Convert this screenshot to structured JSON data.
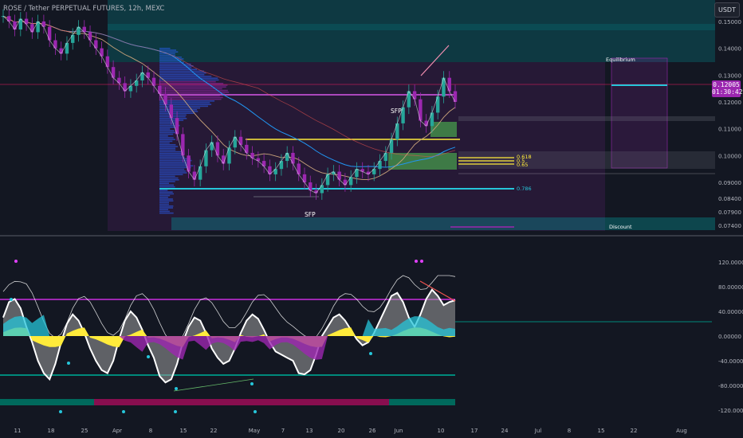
{
  "header": {
    "symbol_title": "ROSE / Tether PERPETUAL FUTURES, 12h, MEXC",
    "currency_button": "USDT"
  },
  "price_tag": {
    "price": "0.12005",
    "countdown": "01:30:42"
  },
  "colors": {
    "background": "#131722",
    "teal_zone": "#00b4b4",
    "purple_zone": "#9c27b0",
    "yellow": "#ffeb3b",
    "green_zone": "#4caf50",
    "cyan": "#26c6da",
    "price_label": "#9c27b0"
  },
  "chart_data": [
    {
      "type": "line",
      "title": "",
      "price_scale": {
        "ticks": [
          "0.15000",
          "0.14000",
          "0.13000",
          "0.12000",
          "0.11000",
          "0.10000",
          "0.09000",
          "0.08400",
          "0.07900",
          "0.07400"
        ],
        "range": [
          0.071,
          0.158
        ]
      },
      "time_axis": {
        "ticks": [
          "11",
          "18",
          "25",
          "Apr",
          "8",
          "15",
          "22",
          "May",
          "7",
          "13",
          "20",
          "26",
          "Jun",
          "10",
          "17",
          "24",
          "Jul",
          "8",
          "15",
          "22",
          "Aug"
        ]
      },
      "annotations": {
        "sfp_labels": [
          "SFP",
          "SFP"
        ],
        "fib_labels": [
          "0.618",
          "0.5",
          "0.65",
          "0.786"
        ],
        "zone_labels": [
          "Equilibrium",
          "Discount"
        ]
      },
      "series": [
        {
          "role": "close",
          "values": [
            0.152,
            0.15,
            0.147,
            0.151,
            0.149,
            0.146,
            0.15,
            0.148,
            0.143,
            0.14,
            0.138,
            0.142,
            0.145,
            0.148,
            0.146,
            0.143,
            0.14,
            0.137,
            0.133,
            0.129,
            0.127,
            0.124,
            0.126,
            0.128,
            0.131,
            0.129,
            0.126,
            0.123,
            0.119,
            0.114,
            0.108,
            0.1,
            0.094,
            0.091,
            0.096,
            0.102,
            0.105,
            0.1,
            0.097,
            0.103,
            0.107,
            0.104,
            0.101,
            0.099,
            0.098,
            0.096,
            0.093,
            0.095,
            0.098,
            0.101,
            0.097,
            0.093,
            0.09,
            0.087,
            0.086,
            0.089,
            0.093,
            0.094,
            0.091,
            0.089,
            0.092,
            0.095,
            0.094,
            0.093,
            0.095,
            0.098,
            0.101,
            0.106,
            0.112,
            0.118,
            0.124,
            0.121,
            0.113,
            0.111,
            0.116,
            0.122,
            0.129,
            0.124,
            0.12
          ]
        }
      ]
    },
    {
      "type": "area",
      "title": "",
      "value_scale": {
        "ticks": [
          "120.00000",
          "80.00000",
          "40.00000",
          "0.00000",
          "-40.00000",
          "-80.00000",
          "-120.00000"
        ],
        "range": [
          -125,
          125
        ]
      },
      "series": [
        {
          "role": "wave",
          "values": [
            30,
            55,
            60,
            45,
            15,
            -10,
            -40,
            -60,
            -70,
            -45,
            -10,
            20,
            35,
            25,
            5,
            -20,
            -40,
            -55,
            -60,
            -40,
            -5,
            25,
            40,
            30,
            10,
            -15,
            -35,
            -65,
            -75,
            -70,
            -45,
            -10,
            15,
            30,
            25,
            5,
            -20,
            -35,
            -45,
            -40,
            -20,
            5,
            25,
            35,
            28,
            10,
            -10,
            -25,
            -30,
            -35,
            -40,
            -60,
            -62,
            -55,
            -30,
            0,
            15,
            30,
            35,
            25,
            10,
            -5,
            -15,
            -10,
            5,
            25,
            45,
            65,
            70,
            55,
            30,
            15,
            35,
            60,
            75,
            65,
            50,
            55,
            58
          ]
        }
      ]
    }
  ]
}
